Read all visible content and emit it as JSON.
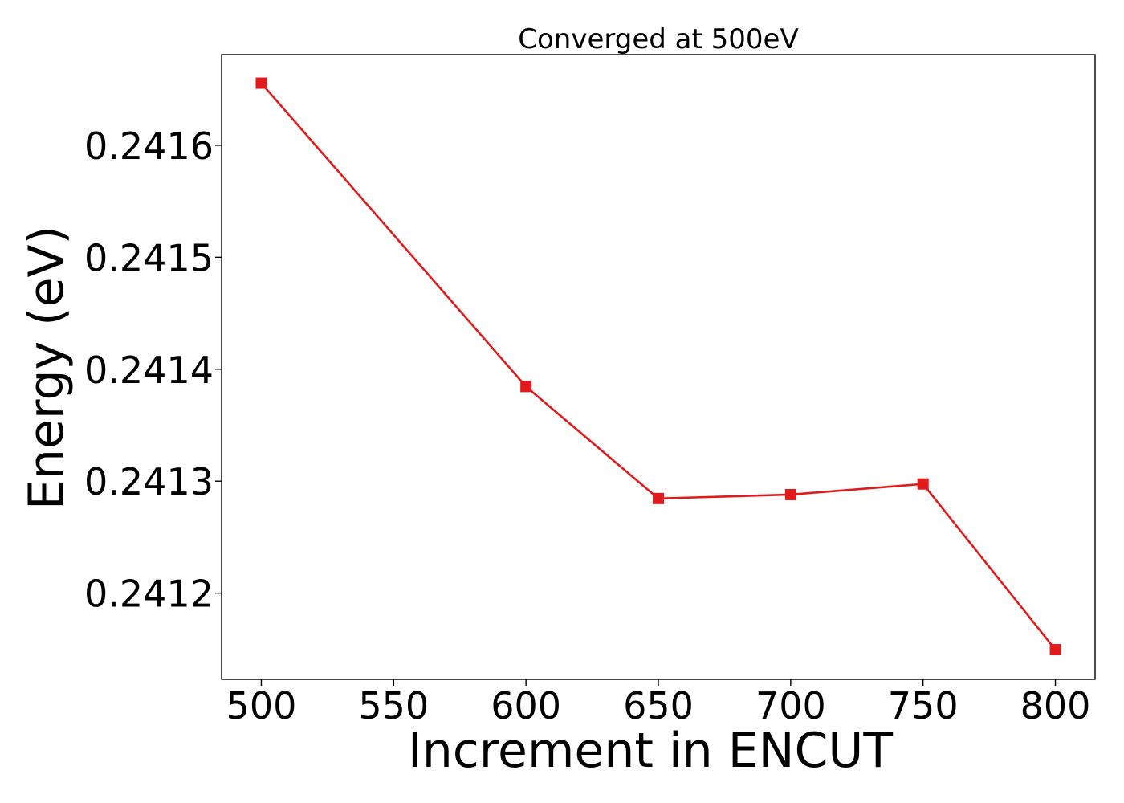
{
  "colors": {
    "series": "#e31a1c",
    "axes": "#000000",
    "background": "#ffffff"
  },
  "chart_data": {
    "type": "line",
    "title": "Converged at 500eV",
    "xlabel": "Increment in ENCUT",
    "ylabel": "Energy (eV)",
    "xlim": [
      485,
      815
    ],
    "ylim": [
      0.241123,
      0.241681
    ],
    "xticks": [
      500,
      550,
      600,
      650,
      700,
      750,
      800
    ],
    "xtick_labels": [
      "500",
      "550",
      "600",
      "650",
      "700",
      "750",
      "800"
    ],
    "yticks": [
      0.2412,
      0.2413,
      0.2414,
      0.2415,
      0.2416
    ],
    "ytick_labels": [
      "0.2412",
      "0.2413",
      "0.2414",
      "0.2415",
      "0.2416"
    ],
    "grid": false,
    "legend": "none",
    "marker": "square",
    "series": [
      {
        "x": [
          500,
          600,
          650,
          700,
          750,
          800
        ],
        "y": [
          0.2416555,
          0.2413845,
          0.2412845,
          0.241288,
          0.2412975,
          0.2411495
        ]
      }
    ]
  }
}
